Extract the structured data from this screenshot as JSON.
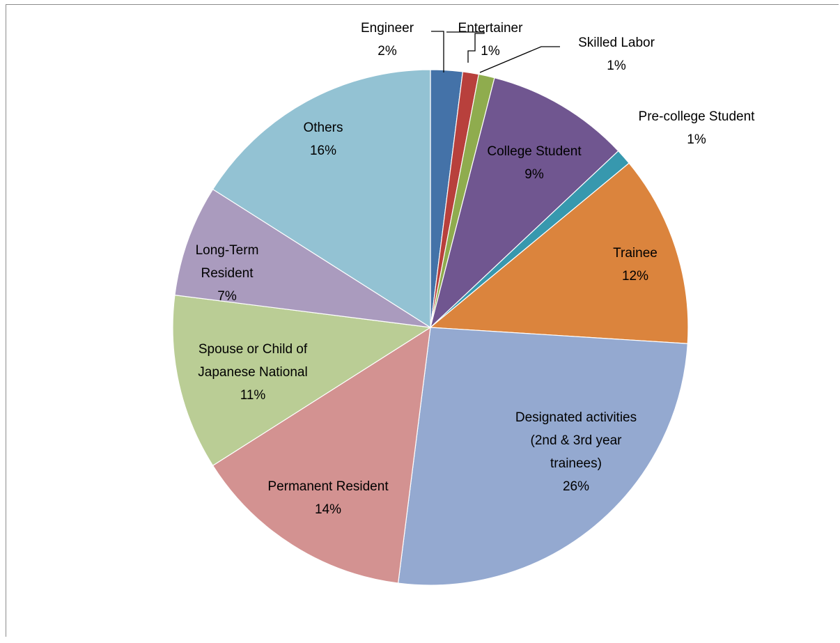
{
  "chart_data": {
    "type": "pie",
    "title": "",
    "slices": [
      {
        "name": "Engineer",
        "value": 2,
        "display": "2%",
        "color": "#4472a8"
      },
      {
        "name": "Entertainer",
        "value": 1,
        "display": "1%",
        "color": "#b8403c"
      },
      {
        "name": "Skilled Labor",
        "value": 1,
        "display": "1%",
        "color": "#8fac4e"
      },
      {
        "name": "College Student",
        "value": 9,
        "display": "9%",
        "color": "#705690"
      },
      {
        "name": "Pre-college Student",
        "value": 1,
        "display": "1%",
        "color": "#3798ae"
      },
      {
        "name": "Trainee",
        "value": 12,
        "display": "12%",
        "color": "#db843d"
      },
      {
        "name": "Designated activities (2nd & 3rd year trainees)",
        "value": 26,
        "display": "26%",
        "color": "#94a9d0"
      },
      {
        "name": "Permanent Resident",
        "value": 14,
        "display": "14%",
        "color": "#d39291"
      },
      {
        "name": "Spouse or Child of Japanese National",
        "value": 11,
        "display": "11%",
        "color": "#bacd95"
      },
      {
        "name": "Long-Term Resident",
        "value": 7,
        "display": "7%",
        "color": "#aa9bbe"
      },
      {
        "name": "Others",
        "value": 16,
        "display": "16%",
        "color": "#93c2d3"
      }
    ]
  },
  "label_lines": {
    "engineer": [
      "Engineer",
      "2%"
    ],
    "entertainer": [
      "Entertainer",
      "1%"
    ],
    "skilled_labor": [
      "Skilled Labor",
      "1%"
    ],
    "college_student": [
      "College Student",
      "9%"
    ],
    "pre_college_student": [
      "Pre-college Student",
      "1%"
    ],
    "trainee": [
      "Trainee",
      "12%"
    ],
    "designated": [
      "Designated activities",
      "(2nd & 3rd year",
      "trainees)",
      "26%"
    ],
    "permanent": [
      "Permanent Resident",
      "14%"
    ],
    "spouse": [
      "Spouse or Child of",
      "Japanese National",
      "11%"
    ],
    "long_term": [
      "Long-Term",
      "Resident",
      "7%"
    ],
    "others": [
      "Others",
      "16%"
    ]
  }
}
